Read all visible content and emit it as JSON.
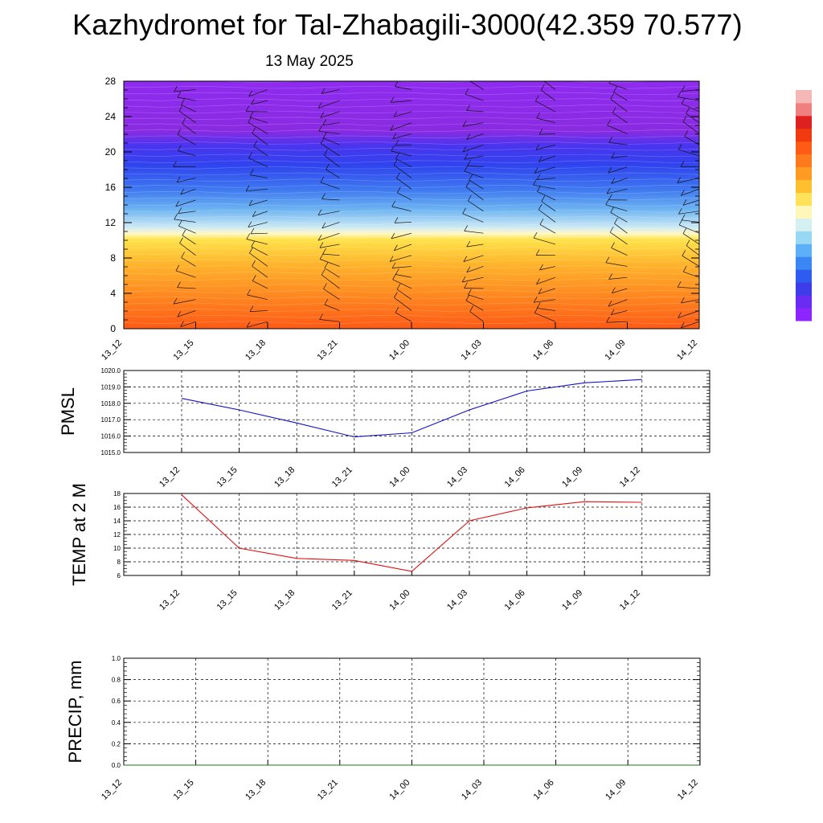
{
  "title": "Kazhydromet for Tal-Zhabagili-3000(42.359 70.577)",
  "subtitle": "13 May 2025",
  "chart_data": [
    {
      "type": "heatmap",
      "name": "meteogram-profile",
      "time_labels": [
        "13_12",
        "13_15",
        "13_18",
        "13_21",
        "14_00",
        "14_03",
        "14_06",
        "14_09",
        "14_12"
      ],
      "ylim": [
        0,
        28
      ],
      "yticks": [
        0,
        4,
        8,
        12,
        16,
        20,
        24,
        28
      ],
      "colorbar_colors": [
        "#8e24ff",
        "#6a2cf2",
        "#3c3ce8",
        "#2e5cf0",
        "#3b86f5",
        "#5bb0f7",
        "#98d8f2",
        "#d5f0f2",
        "#fff7b8",
        "#ffe25a",
        "#ffbf2e",
        "#ff9a22",
        "#ff7a1c",
        "#ff5a16",
        "#f23a10",
        "#e02020",
        "#f08080",
        "#f6b7b7"
      ],
      "layer_bands": [
        {
          "y0": 22.5,
          "y1": 28,
          "color": "#8a2be2"
        },
        {
          "y0": 18.5,
          "y1": 22.5,
          "color": "#3a3ef0"
        },
        {
          "y0": 15.5,
          "y1": 18.5,
          "color": "#3f78f0"
        },
        {
          "y0": 13,
          "y1": 15.5,
          "color": "#78b6f2"
        },
        {
          "y0": 11,
          "y1": 13,
          "color": "#d6eef3"
        },
        {
          "y0": 8,
          "y1": 11,
          "color": "#ffe04a"
        },
        {
          "y0": 4,
          "y1": 8,
          "color": "#ffad2a"
        },
        {
          "y0": 0,
          "y1": 4,
          "color": "#ff6a18"
        }
      ]
    },
    {
      "type": "line",
      "name": "pmsl",
      "ylabel": "PMSL",
      "ylim": [
        1015.0,
        1020.0
      ],
      "yticks": [
        "1015.0",
        "1016.0",
        "1017.0",
        "1018.0",
        "1019.0",
        "1020.0"
      ],
      "x": [
        "13_12",
        "13_15",
        "13_18",
        "13_21",
        "14_00",
        "14_03",
        "14_06",
        "14_09",
        "14_12"
      ],
      "values": [
        1018.3,
        1017.6,
        1016.8,
        1015.95,
        1016.2,
        1017.6,
        1018.75,
        1019.25,
        1019.45
      ],
      "color": "#1010c8"
    },
    {
      "type": "line",
      "name": "temp-2m",
      "ylabel": "TEMP at 2 M",
      "ylim": [
        6,
        18
      ],
      "yticks": [
        "6",
        "8",
        "10",
        "12",
        "14",
        "16",
        "18"
      ],
      "x": [
        "13_12",
        "13_15",
        "13_18",
        "13_21",
        "14_00",
        "14_03",
        "14_06",
        "14_09",
        "14_12"
      ],
      "values": [
        17.8,
        10.0,
        8.5,
        8.2,
        6.6,
        14.0,
        15.9,
        16.8,
        16.7
      ],
      "color": "#e01010"
    },
    {
      "type": "line",
      "name": "precip",
      "ylabel": "PRECIP, mm",
      "ylim": [
        0.0,
        1.0
      ],
      "yticks": [
        "0.0",
        "0.2",
        "0.4",
        "0.6",
        "0.8",
        "1.0"
      ],
      "time_labels": [
        "13_12",
        "13_15",
        "13_18",
        "13_21",
        "14_00",
        "14_03",
        "14_06",
        "14_09",
        "14_12"
      ],
      "values": [
        0,
        0,
        0,
        0,
        0,
        0,
        0,
        0,
        0
      ],
      "color": "#1a7a1a"
    }
  ]
}
